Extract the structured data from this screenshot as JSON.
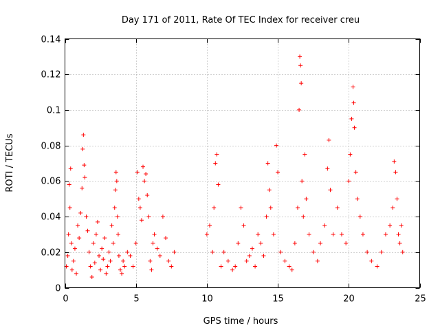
{
  "chart_data": {
    "type": "scatter",
    "title": "Day 171 of 2011, Rate Of TEC Index for receiver creu",
    "xlabel": "GPS time / hours",
    "ylabel": "ROTI / TECUs",
    "xlim": [
      0,
      25
    ],
    "ylim": [
      0,
      0.14
    ],
    "xticks": [
      0,
      5,
      10,
      15,
      20,
      25
    ],
    "xtick_labels": [
      "0",
      "5",
      "10",
      "15",
      "20",
      "25"
    ],
    "yticks": [
      0,
      0.02,
      0.04,
      0.06,
      0.08,
      0.1,
      0.12,
      0.14
    ],
    "ytick_labels": [
      "0",
      "0.02",
      "0.04",
      "0.06",
      "0.08",
      "0.1",
      "0.12",
      "0.14"
    ],
    "grid": true,
    "marker": "+",
    "color": "#ff0000",
    "series": [
      {
        "name": "ROTI",
        "points": [
          [
            0.1,
            0.012
          ],
          [
            0.2,
            0.018
          ],
          [
            0.25,
            0.03
          ],
          [
            0.3,
            0.058
          ],
          [
            0.35,
            0.045
          ],
          [
            0.4,
            0.067
          ],
          [
            0.45,
            0.025
          ],
          [
            0.5,
            0.01
          ],
          [
            0.6,
            0.015
          ],
          [
            0.7,
            0.022
          ],
          [
            0.8,
            0.008
          ],
          [
            0.9,
            0.035
          ],
          [
            1.0,
            0.028
          ],
          [
            1.1,
            0.042
          ],
          [
            1.2,
            0.056
          ],
          [
            1.25,
            0.078
          ],
          [
            1.3,
            0.086
          ],
          [
            1.35,
            0.069
          ],
          [
            1.4,
            0.062
          ],
          [
            1.5,
            0.04
          ],
          [
            1.6,
            0.032
          ],
          [
            1.7,
            0.02
          ],
          [
            1.8,
            0.012
          ],
          [
            1.9,
            0.006
          ],
          [
            2.0,
            0.025
          ],
          [
            2.1,
            0.014
          ],
          [
            2.2,
            0.03
          ],
          [
            2.3,
            0.037
          ],
          [
            2.4,
            0.018
          ],
          [
            2.5,
            0.01
          ],
          [
            2.6,
            0.022
          ],
          [
            2.7,
            0.016
          ],
          [
            2.8,
            0.028
          ],
          [
            2.9,
            0.008
          ],
          [
            3.0,
            0.012
          ],
          [
            3.1,
            0.02
          ],
          [
            3.2,
            0.015
          ],
          [
            3.3,
            0.035
          ],
          [
            3.4,
            0.025
          ],
          [
            3.5,
            0.045
          ],
          [
            3.55,
            0.055
          ],
          [
            3.6,
            0.065
          ],
          [
            3.65,
            0.06
          ],
          [
            3.7,
            0.04
          ],
          [
            3.75,
            0.03
          ],
          [
            3.8,
            0.018
          ],
          [
            3.9,
            0.01
          ],
          [
            4.0,
            0.008
          ],
          [
            4.1,
            0.015
          ],
          [
            4.2,
            0.012
          ],
          [
            4.4,
            0.02
          ],
          [
            4.6,
            0.018
          ],
          [
            4.8,
            0.012
          ],
          [
            5.0,
            0.025
          ],
          [
            5.1,
            0.065
          ],
          [
            5.2,
            0.05
          ],
          [
            5.3,
            0.045
          ],
          [
            5.4,
            0.038
          ],
          [
            5.5,
            0.068
          ],
          [
            5.6,
            0.06
          ],
          [
            5.7,
            0.064
          ],
          [
            5.8,
            0.052
          ],
          [
            5.9,
            0.04
          ],
          [
            6.0,
            0.015
          ],
          [
            6.1,
            0.01
          ],
          [
            6.2,
            0.025
          ],
          [
            6.3,
            0.03
          ],
          [
            6.5,
            0.022
          ],
          [
            6.7,
            0.018
          ],
          [
            6.9,
            0.04
          ],
          [
            7.1,
            0.028
          ],
          [
            7.3,
            0.015
          ],
          [
            7.5,
            0.012
          ],
          [
            7.7,
            0.02
          ],
          [
            10.0,
            0.03
          ],
          [
            10.2,
            0.035
          ],
          [
            10.4,
            0.02
          ],
          [
            10.5,
            0.045
          ],
          [
            10.6,
            0.07
          ],
          [
            10.7,
            0.075
          ],
          [
            10.8,
            0.058
          ],
          [
            11.0,
            0.012
          ],
          [
            11.2,
            0.02
          ],
          [
            11.5,
            0.015
          ],
          [
            11.8,
            0.01
          ],
          [
            12.0,
            0.012
          ],
          [
            12.2,
            0.025
          ],
          [
            12.4,
            0.045
          ],
          [
            12.6,
            0.035
          ],
          [
            12.8,
            0.015
          ],
          [
            13.0,
            0.018
          ],
          [
            13.2,
            0.022
          ],
          [
            13.4,
            0.012
          ],
          [
            13.6,
            0.03
          ],
          [
            13.8,
            0.025
          ],
          [
            14.0,
            0.018
          ],
          [
            14.2,
            0.04
          ],
          [
            14.3,
            0.07
          ],
          [
            14.4,
            0.055
          ],
          [
            14.5,
            0.045
          ],
          [
            14.7,
            0.03
          ],
          [
            14.9,
            0.08
          ],
          [
            15.0,
            0.065
          ],
          [
            15.2,
            0.02
          ],
          [
            15.5,
            0.015
          ],
          [
            15.8,
            0.012
          ],
          [
            16.0,
            0.01
          ],
          [
            16.2,
            0.025
          ],
          [
            16.4,
            0.045
          ],
          [
            16.5,
            0.1
          ],
          [
            16.55,
            0.13
          ],
          [
            16.6,
            0.125
          ],
          [
            16.65,
            0.115
          ],
          [
            16.7,
            0.06
          ],
          [
            16.8,
            0.04
          ],
          [
            16.9,
            0.075
          ],
          [
            17.0,
            0.05
          ],
          [
            17.2,
            0.03
          ],
          [
            17.5,
            0.02
          ],
          [
            17.8,
            0.015
          ],
          [
            18.0,
            0.025
          ],
          [
            18.3,
            0.035
          ],
          [
            18.5,
            0.067
          ],
          [
            18.6,
            0.083
          ],
          [
            18.7,
            0.055
          ],
          [
            18.9,
            0.03
          ],
          [
            19.2,
            0.045
          ],
          [
            19.5,
            0.03
          ],
          [
            19.8,
            0.025
          ],
          [
            20.0,
            0.06
          ],
          [
            20.1,
            0.075
          ],
          [
            20.2,
            0.095
          ],
          [
            20.3,
            0.113
          ],
          [
            20.35,
            0.104
          ],
          [
            20.4,
            0.09
          ],
          [
            20.5,
            0.065
          ],
          [
            20.6,
            0.05
          ],
          [
            20.8,
            0.04
          ],
          [
            21.0,
            0.03
          ],
          [
            21.3,
            0.02
          ],
          [
            21.6,
            0.015
          ],
          [
            22.0,
            0.012
          ],
          [
            22.3,
            0.02
          ],
          [
            22.6,
            0.03
          ],
          [
            22.9,
            0.035
          ],
          [
            23.1,
            0.045
          ],
          [
            23.2,
            0.071
          ],
          [
            23.3,
            0.065
          ],
          [
            23.4,
            0.05
          ],
          [
            23.5,
            0.03
          ],
          [
            23.6,
            0.025
          ],
          [
            23.7,
            0.035
          ],
          [
            23.8,
            0.02
          ]
        ]
      }
    ]
  }
}
